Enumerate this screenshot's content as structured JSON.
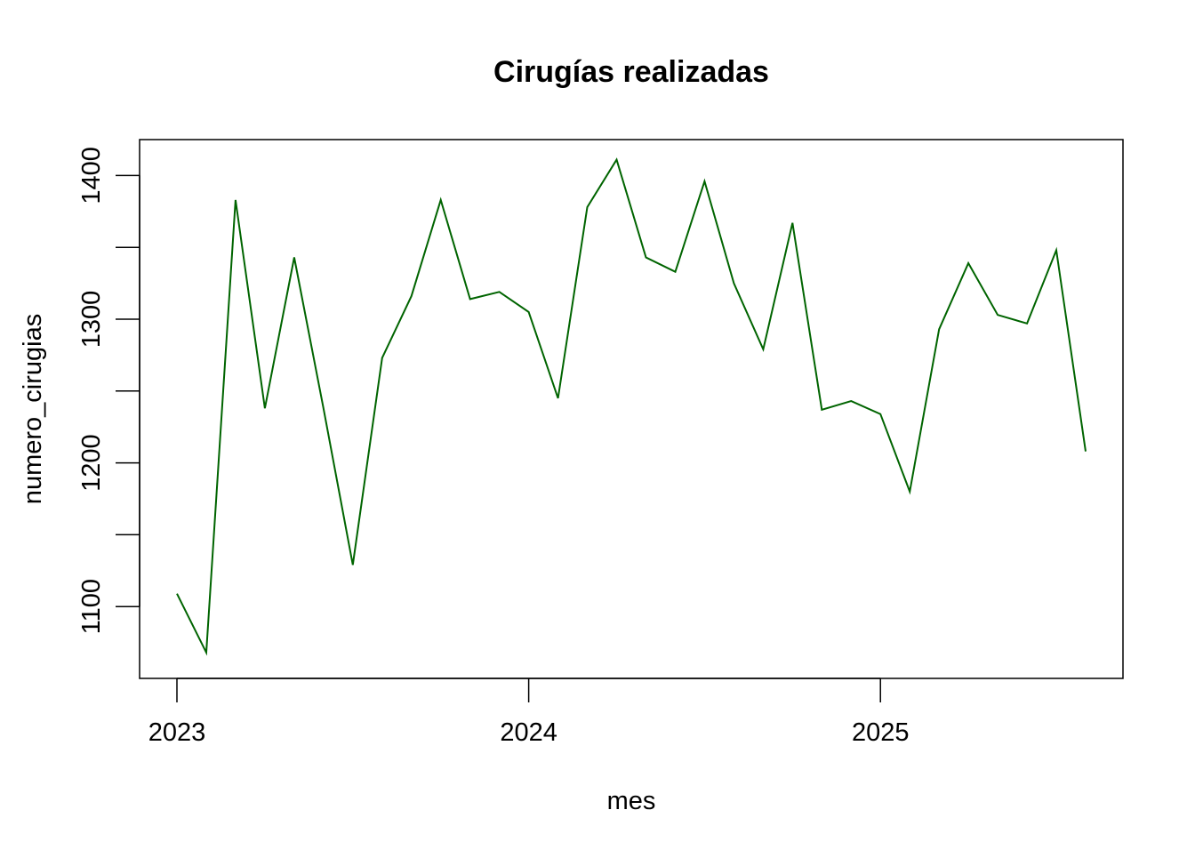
{
  "chart_data": {
    "type": "line",
    "title": "Cirugías realizadas",
    "xlabel": "mes",
    "ylabel": "numero_cirugias",
    "x_ticks": [
      "2023",
      "2024",
      "2025"
    ],
    "y_ticks": [
      "1100",
      "1200",
      "1300",
      "1400"
    ],
    "xlim": [
      "2023-01",
      "2025-08"
    ],
    "ylim": [
      1050,
      1425
    ],
    "grid": false,
    "line_color": "#006400",
    "series": [
      {
        "x": [
          "2023-01",
          "2023-02",
          "2023-03",
          "2023-04",
          "2023-05",
          "2023-06",
          "2023-07",
          "2023-08",
          "2023-09",
          "2023-10",
          "2023-11",
          "2023-12",
          "2024-01",
          "2024-02",
          "2024-03",
          "2024-04",
          "2024-05",
          "2024-06",
          "2024-07",
          "2024-08",
          "2024-09",
          "2024-10",
          "2024-11",
          "2024-12",
          "2025-01",
          "2025-02",
          "2025-03",
          "2025-04",
          "2025-05",
          "2025-06",
          "2025-07",
          "2025-08"
        ],
        "values": [
          1109,
          1068,
          1383,
          1238,
          1343,
          1238,
          1129,
          1273,
          1316,
          1383,
          1314,
          1319,
          1305,
          1245,
          1378,
          1411,
          1343,
          1333,
          1396,
          1325,
          1279,
          1367,
          1237,
          1243,
          1234,
          1180,
          1293,
          1339,
          1303,
          1297,
          1348,
          1208
        ]
      }
    ]
  }
}
